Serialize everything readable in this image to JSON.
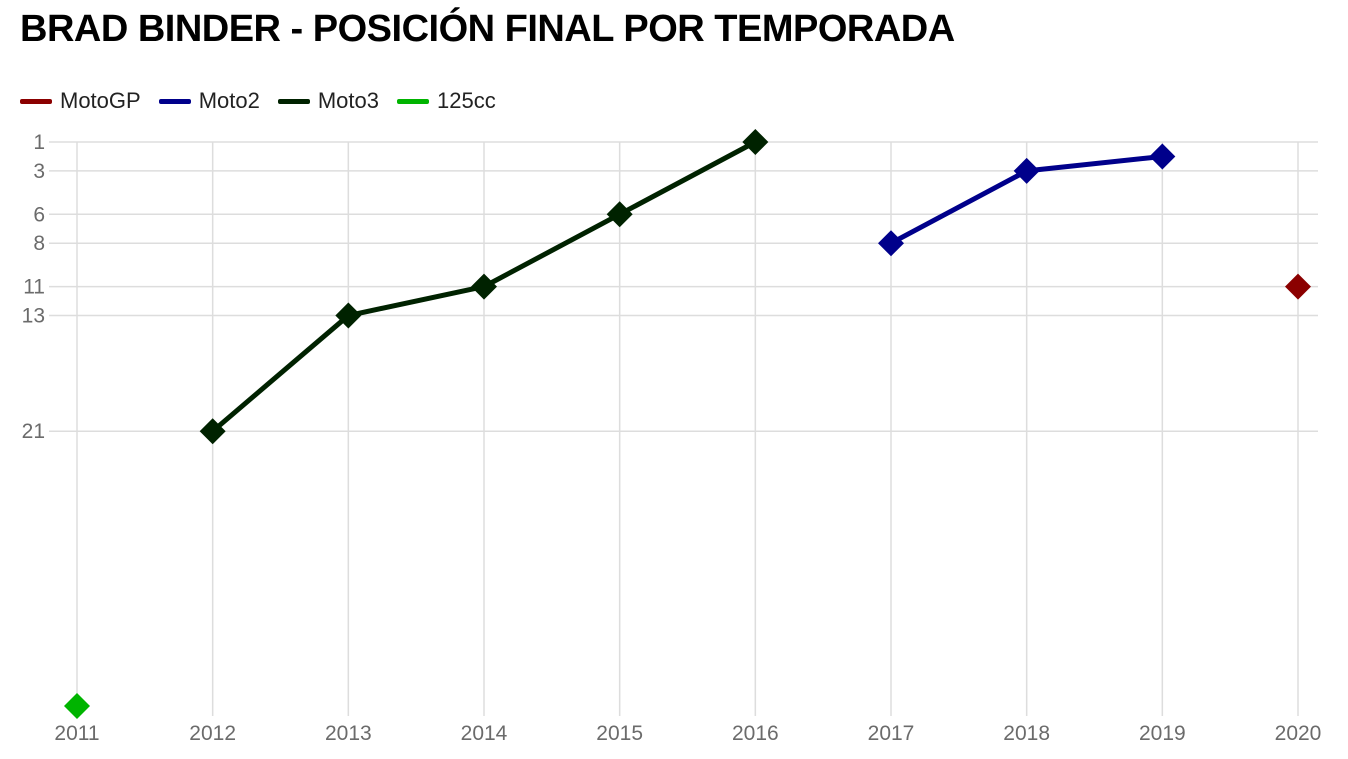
{
  "chart_data": {
    "type": "line",
    "title": "BRAD BINDER - POSICIÓN FINAL POR TEMPORADA",
    "xlabel": "",
    "ylabel": "",
    "x": [
      2011,
      2012,
      2013,
      2014,
      2015,
      2016,
      2017,
      2018,
      2019,
      2020
    ],
    "x_tick_labels": [
      "2011",
      "2012",
      "2013",
      "2014",
      "2015",
      "2016",
      "2017",
      "2018",
      "2019",
      "2020"
    ],
    "y_tick_values": [
      1,
      3,
      6,
      8,
      11,
      13,
      21
    ],
    "y_tick_labels": [
      "1",
      "3",
      "6",
      "8",
      "11",
      "13",
      "21"
    ],
    "ylim": [
      1,
      40
    ],
    "y_inverted": true,
    "grid": true,
    "legend_position": "top-left",
    "series": [
      {
        "name": "MotoGP",
        "color": "#8b0000",
        "points": [
          {
            "x": 2020,
            "y": 11
          }
        ]
      },
      {
        "name": "Moto2",
        "color": "#00008b",
        "points": [
          {
            "x": 2017,
            "y": 8
          },
          {
            "x": 2018,
            "y": 3
          },
          {
            "x": 2019,
            "y": 2
          }
        ]
      },
      {
        "name": "Moto3",
        "color": "#002200",
        "points": [
          {
            "x": 2012,
            "y": 21
          },
          {
            "x": 2013,
            "y": 13
          },
          {
            "x": 2014,
            "y": 11
          },
          {
            "x": 2015,
            "y": 6
          },
          {
            "x": 2016,
            "y": 1
          }
        ]
      },
      {
        "name": "125cc",
        "color": "#00b400",
        "points": [
          {
            "x": 2011,
            "y": 40
          }
        ]
      }
    ]
  }
}
